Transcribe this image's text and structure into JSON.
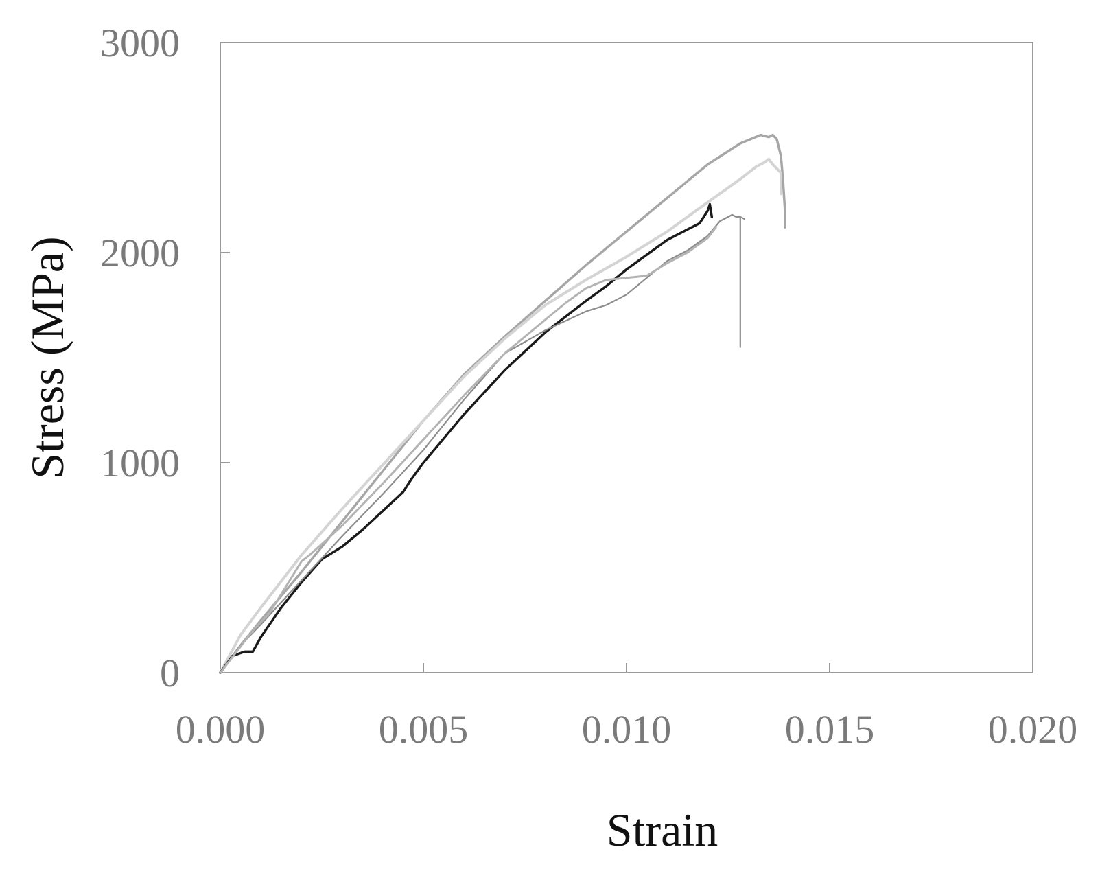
{
  "chart_data": {
    "type": "line",
    "title": "",
    "xlabel": "Strain",
    "ylabel": "Stress (MPa)",
    "xlim": [
      0,
      0.02
    ],
    "ylim": [
      0,
      3000
    ],
    "xticks": [
      "0.000",
      "0.005",
      "0.010",
      "0.015",
      "0.020"
    ],
    "xtick_values": [
      0,
      0.005,
      0.01,
      0.015,
      0.02
    ],
    "yticks": [
      "0",
      "1000",
      "2000",
      "3000"
    ],
    "ytick_values": [
      0,
      1000,
      2000,
      3000
    ],
    "grid": false,
    "legend": "none",
    "colors": {
      "frame": "#9a9a9a",
      "tick_label": "#7a7a7a",
      "axis_title": "#111111"
    },
    "series": [
      {
        "color": "#a6a6a6",
        "width": 3.5,
        "x": [
          0,
          0.0005,
          0.001,
          0.002,
          0.003,
          0.004,
          0.005,
          0.006,
          0.007,
          0.008,
          0.009,
          0.01,
          0.011,
          0.012,
          0.0128,
          0.0133,
          0.0135,
          0.0136,
          0.0137,
          0.0138,
          0.01385,
          0.0139,
          0.0139
        ],
        "y": [
          0,
          130,
          250,
          480,
          720,
          960,
          1200,
          1420,
          1600,
          1770,
          1940,
          2100,
          2260,
          2420,
          2520,
          2560,
          2550,
          2560,
          2540,
          2460,
          2350,
          2200,
          2120
        ]
      },
      {
        "color": "#d4d4d4",
        "width": 4,
        "x": [
          0,
          0.0005,
          0.001,
          0.002,
          0.003,
          0.004,
          0.005,
          0.006,
          0.007,
          0.008,
          0.009,
          0.01,
          0.011,
          0.012,
          0.0128,
          0.0132,
          0.0134,
          0.0135,
          0.0136,
          0.0137,
          0.0138,
          0.0138
        ],
        "y": [
          0,
          180,
          310,
          560,
          780,
          990,
          1200,
          1410,
          1590,
          1750,
          1870,
          1980,
          2100,
          2240,
          2350,
          2410,
          2430,
          2445,
          2420,
          2400,
          2380,
          2280
        ]
      },
      {
        "color": "#1a1a1a",
        "width": 3.5,
        "x": [
          0,
          0.0003,
          0.0006,
          0.0008,
          0.001,
          0.0015,
          0.002,
          0.0025,
          0.003,
          0.0035,
          0.004,
          0.0045,
          0.0047,
          0.005,
          0.006,
          0.007,
          0.008,
          0.009,
          0.0095,
          0.01,
          0.0105,
          0.011,
          0.0115,
          0.0118,
          0.012,
          0.01205,
          0.0121
        ],
        "y": [
          0,
          80,
          100,
          100,
          170,
          310,
          430,
          540,
          600,
          680,
          770,
          860,
          920,
          1000,
          1230,
          1440,
          1620,
          1770,
          1840,
          1920,
          1990,
          2060,
          2110,
          2140,
          2200,
          2230,
          2170
        ]
      },
      {
        "color": "#8c8c8c",
        "width": 2.2,
        "x": [
          0,
          0.0005,
          0.001,
          0.002,
          0.003,
          0.004,
          0.005,
          0.006,
          0.007,
          0.008,
          0.009,
          0.0095,
          0.01,
          0.0105,
          0.011,
          0.0115,
          0.012,
          0.0123,
          0.0125,
          0.0126,
          0.0127,
          0.0128,
          0.0128,
          0.0128,
          0.0129
        ],
        "y": [
          0,
          130,
          230,
          440,
          650,
          850,
          1060,
          1300,
          1520,
          1630,
          1720,
          1750,
          1800,
          1880,
          1960,
          2010,
          2080,
          2150,
          2170,
          2180,
          2170,
          2170,
          1550,
          2170,
          2160
        ]
      },
      {
        "color": "#b3b3b3",
        "width": 3,
        "x": [
          0,
          0.0004,
          0.0008,
          0.0012,
          0.002,
          0.0022,
          0.003,
          0.004,
          0.005,
          0.006,
          0.007,
          0.008,
          0.0085,
          0.009,
          0.0095,
          0.01,
          0.0105,
          0.011,
          0.0115,
          0.012,
          0.0122
        ],
        "y": [
          0,
          100,
          200,
          280,
          530,
          560,
          700,
          900,
          1110,
          1320,
          1520,
          1680,
          1760,
          1830,
          1870,
          1880,
          1890,
          1950,
          2000,
          2070,
          2120
        ]
      }
    ]
  }
}
